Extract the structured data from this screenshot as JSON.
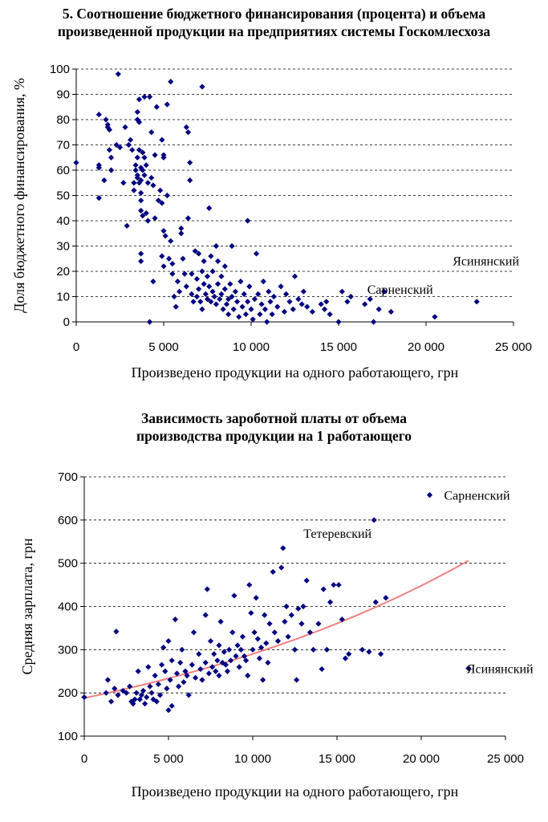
{
  "chart_data": [
    {
      "type": "scatter",
      "title_lines": [
        "5. Соотношение  бюджетного финансирования (процента) и  объема",
        "произведенной продукции на предприятиях системы Госкомлесхоза"
      ],
      "xlabel": "Произведено продукции на одного работающего, грн",
      "ylabel": "Доля бюджетного финансирования, %",
      "xlim": [
        0,
        25000
      ],
      "ylim": [
        0,
        100
      ],
      "x_ticks": [
        0,
        5000,
        10000,
        15000,
        20000,
        25000
      ],
      "x_tick_labels": [
        "0",
        "5 000",
        "10 000",
        "15 000",
        "20 000",
        "25 000"
      ],
      "y_ticks": [
        0,
        10,
        20,
        30,
        40,
        50,
        60,
        70,
        80,
        90,
        100
      ],
      "y_tick_labels": [
        "0",
        "10",
        "20",
        "30",
        "40",
        "50",
        "60",
        "70",
        "80",
        "90",
        "100"
      ],
      "grid": "horizontal dashed",
      "marker_color": "#000080",
      "annotations": [
        {
          "text": "Ясинянский",
          "x": 22900,
          "y": 17
        },
        {
          "text": "Сарненский",
          "x": 20400,
          "y": 8
        }
      ],
      "points": [
        [
          0,
          63
        ],
        [
          1300,
          82
        ],
        [
          1300,
          62
        ],
        [
          1300,
          61
        ],
        [
          1300,
          49
        ],
        [
          1600,
          56
        ],
        [
          1700,
          80
        ],
        [
          1800,
          78
        ],
        [
          1800,
          77
        ],
        [
          1900,
          76
        ],
        [
          1900,
          68
        ],
        [
          2000,
          65
        ],
        [
          2000,
          60
        ],
        [
          2300,
          70
        ],
        [
          2400,
          98
        ],
        [
          2500,
          69
        ],
        [
          2700,
          55
        ],
        [
          2800,
          77
        ],
        [
          2900,
          38
        ],
        [
          3000,
          70
        ],
        [
          3100,
          72
        ],
        [
          3200,
          68
        ],
        [
          3300,
          55
        ],
        [
          3300,
          52
        ],
        [
          3400,
          62
        ],
        [
          3400,
          60
        ],
        [
          3500,
          83
        ],
        [
          3500,
          80
        ],
        [
          3500,
          65
        ],
        [
          3500,
          58
        ],
        [
          3500,
          57
        ],
        [
          3600,
          88
        ],
        [
          3600,
          79
        ],
        [
          3600,
          68
        ],
        [
          3600,
          55
        ],
        [
          3700,
          61
        ],
        [
          3700,
          56
        ],
        [
          3700,
          51
        ],
        [
          3700,
          48
        ],
        [
          3700,
          44
        ],
        [
          3700,
          27
        ],
        [
          3700,
          24
        ],
        [
          3800,
          67
        ],
        [
          3800,
          60
        ],
        [
          3800,
          42
        ],
        [
          3900,
          89
        ],
        [
          3900,
          65
        ],
        [
          3900,
          58
        ],
        [
          4000,
          62
        ],
        [
          4000,
          43
        ],
        [
          4100,
          55
        ],
        [
          4100,
          40
        ],
        [
          4200,
          89
        ],
        [
          4200,
          0
        ],
        [
          4300,
          75
        ],
        [
          4300,
          57
        ],
        [
          4400,
          54
        ],
        [
          4400,
          16
        ],
        [
          4500,
          66
        ],
        [
          4500,
          41
        ],
        [
          4600,
          85
        ],
        [
          4700,
          48
        ],
        [
          4800,
          52
        ],
        [
          4900,
          72
        ],
        [
          4900,
          47
        ],
        [
          4900,
          26
        ],
        [
          5000,
          66
        ],
        [
          5000,
          65
        ],
        [
          5000,
          36
        ],
        [
          5000,
          22
        ],
        [
          5100,
          34
        ],
        [
          5200,
          86
        ],
        [
          5200,
          50
        ],
        [
          5300,
          25
        ],
        [
          5400,
          95
        ],
        [
          5400,
          32
        ],
        [
          5500,
          23
        ],
        [
          5500,
          19
        ],
        [
          5600,
          10
        ],
        [
          5700,
          6
        ],
        [
          5800,
          16
        ],
        [
          5900,
          12
        ],
        [
          6000,
          37
        ],
        [
          6000,
          35
        ],
        [
          6100,
          25
        ],
        [
          6200,
          19
        ],
        [
          6300,
          77
        ],
        [
          6300,
          14
        ],
        [
          6400,
          75
        ],
        [
          6400,
          41
        ],
        [
          6500,
          56
        ],
        [
          6500,
          63
        ],
        [
          6600,
          19
        ],
        [
          6600,
          11
        ],
        [
          6700,
          8
        ],
        [
          6800,
          28
        ],
        [
          6900,
          17
        ],
        [
          6900,
          10
        ],
        [
          7000,
          27
        ],
        [
          7000,
          13
        ],
        [
          7100,
          8
        ],
        [
          7200,
          93
        ],
        [
          7200,
          20
        ],
        [
          7200,
          5
        ],
        [
          7300,
          24
        ],
        [
          7300,
          15
        ],
        [
          7400,
          11
        ],
        [
          7500,
          18
        ],
        [
          7500,
          9
        ],
        [
          7600,
          45
        ],
        [
          7600,
          14
        ],
        [
          7700,
          26
        ],
        [
          7700,
          8
        ],
        [
          7800,
          20
        ],
        [
          7800,
          12
        ],
        [
          7900,
          10
        ],
        [
          8000,
          30
        ],
        [
          8000,
          7
        ],
        [
          8100,
          24
        ],
        [
          8100,
          15
        ],
        [
          8200,
          9
        ],
        [
          8300,
          18
        ],
        [
          8300,
          11
        ],
        [
          8400,
          5
        ],
        [
          8500,
          13
        ],
        [
          8500,
          22
        ],
        [
          8600,
          7
        ],
        [
          8700,
          9
        ],
        [
          8700,
          3
        ],
        [
          8800,
          15
        ],
        [
          8900,
          30
        ],
        [
          8900,
          10
        ],
        [
          9000,
          5
        ],
        [
          9100,
          12
        ],
        [
          9200,
          8
        ],
        [
          9300,
          2
        ],
        [
          9400,
          16
        ],
        [
          9500,
          6
        ],
        [
          9600,
          11
        ],
        [
          9700,
          3
        ],
        [
          9800,
          40
        ],
        [
          9800,
          8
        ],
        [
          9900,
          14
        ],
        [
          10000,
          5
        ],
        [
          10100,
          1
        ],
        [
          10200,
          9
        ],
        [
          10300,
          27
        ],
        [
          10400,
          11
        ],
        [
          10500,
          3
        ],
        [
          10600,
          7
        ],
        [
          10700,
          16
        ],
        [
          10800,
          5
        ],
        [
          10900,
          0
        ],
        [
          11000,
          12
        ],
        [
          11100,
          8
        ],
        [
          11200,
          3
        ],
        [
          11300,
          10
        ],
        [
          11500,
          6
        ],
        [
          11700,
          14
        ],
        [
          11900,
          4
        ],
        [
          12000,
          11
        ],
        [
          12200,
          8
        ],
        [
          12400,
          5
        ],
        [
          12500,
          18
        ],
        [
          12700,
          9
        ],
        [
          12900,
          7
        ],
        [
          13000,
          12
        ],
        [
          13200,
          6
        ],
        [
          13500,
          4
        ],
        [
          14000,
          7
        ],
        [
          14200,
          5
        ],
        [
          14300,
          8
        ],
        [
          14500,
          3
        ],
        [
          15000,
          0
        ],
        [
          15200,
          12
        ],
        [
          15500,
          8
        ],
        [
          15700,
          10
        ],
        [
          16500,
          7
        ],
        [
          16800,
          9
        ],
        [
          17000,
          0
        ],
        [
          17300,
          5
        ],
        [
          17600,
          12
        ],
        [
          18000,
          4
        ],
        [
          20500,
          2
        ],
        [
          22900,
          8
        ]
      ]
    },
    {
      "type": "scatter",
      "title_lines": [
        "Зависимость зароботной платы от объема",
        "производства продукции  на 1 работающего"
      ],
      "xlabel": "Произведено продукции на одного работающего, грн",
      "ylabel": "Средняя зарплата, грн",
      "xlim": [
        0,
        25000
      ],
      "ylim": [
        100,
        700
      ],
      "x_ticks": [
        0,
        5000,
        10000,
        15000,
        20000,
        25000
      ],
      "x_tick_labels": [
        "0",
        "5 000",
        "10 000",
        "15 000",
        "20 000",
        "25 000"
      ],
      "y_ticks": [
        100,
        200,
        300,
        400,
        500,
        600,
        700
      ],
      "y_tick_labels": [
        "100",
        "200",
        "300",
        "400",
        "500",
        "600",
        "700"
      ],
      "grid": "horizontal dashed",
      "marker_color": "#000080",
      "trend_color": "#f08080",
      "trend": {
        "type": "exponential",
        "x": [
          0,
          22800
        ],
        "y": [
          188,
          506
        ]
      },
      "annotations": [
        {
          "text": "Сарненский",
          "x": 20500,
          "y": 658
        },
        {
          "text": "Тетеревский",
          "x": 17200,
          "y": 600
        },
        {
          "text": "Ясинянский",
          "x": 22800,
          "y": 257
        }
      ],
      "points": [
        [
          0,
          190
        ],
        [
          1300,
          200
        ],
        [
          1400,
          230
        ],
        [
          1600,
          180
        ],
        [
          1800,
          210
        ],
        [
          1900,
          342
        ],
        [
          2000,
          195
        ],
        [
          2300,
          205
        ],
        [
          2500,
          200
        ],
        [
          2700,
          215
        ],
        [
          2800,
          180
        ],
        [
          2900,
          175
        ],
        [
          3000,
          185
        ],
        [
          3100,
          200
        ],
        [
          3200,
          250
        ],
        [
          3300,
          185
        ],
        [
          3400,
          195
        ],
        [
          3500,
          205
        ],
        [
          3600,
          175
        ],
        [
          3700,
          190
        ],
        [
          3800,
          260
        ],
        [
          3900,
          215
        ],
        [
          4000,
          200
        ],
        [
          4100,
          185
        ],
        [
          4200,
          240
        ],
        [
          4300,
          180
        ],
        [
          4400,
          220
        ],
        [
          4500,
          195
        ],
        [
          4600,
          265
        ],
        [
          4700,
          305
        ],
        [
          4800,
          250
        ],
        [
          4900,
          210
        ],
        [
          5000,
          320
        ],
        [
          5000,
          160
        ],
        [
          5100,
          230
        ],
        [
          5200,
          275
        ],
        [
          5200,
          170
        ],
        [
          5400,
          370
        ],
        [
          5500,
          245
        ],
        [
          5600,
          215
        ],
        [
          5700,
          270
        ],
        [
          5800,
          300
        ],
        [
          5900,
          225
        ],
        [
          6000,
          250
        ],
        [
          6100,
          240
        ],
        [
          6200,
          195
        ],
        [
          6400,
          265
        ],
        [
          6500,
          340
        ],
        [
          6600,
          235
        ],
        [
          6800,
          290
        ],
        [
          6900,
          255
        ],
        [
          7000,
          230
        ],
        [
          7200,
          380
        ],
        [
          7200,
          270
        ],
        [
          7300,
          440
        ],
        [
          7400,
          245
        ],
        [
          7500,
          320
        ],
        [
          7600,
          260
        ],
        [
          7700,
          290
        ],
        [
          7800,
          250
        ],
        [
          7900,
          275
        ],
        [
          8000,
          310
        ],
        [
          8000,
          240
        ],
        [
          8100,
          365
        ],
        [
          8200,
          270
        ],
        [
          8300,
          295
        ],
        [
          8400,
          265
        ],
        [
          8500,
          250
        ],
        [
          8600,
          300
        ],
        [
          8700,
          275
        ],
        [
          8800,
          340
        ],
        [
          8900,
          425
        ],
        [
          9000,
          285
        ],
        [
          9100,
          310
        ],
        [
          9200,
          260
        ],
        [
          9300,
          300
        ],
        [
          9400,
          330
        ],
        [
          9500,
          285
        ],
        [
          9600,
          275
        ],
        [
          9700,
          240
        ],
        [
          9800,
          450
        ],
        [
          9900,
          385
        ],
        [
          10000,
          300
        ],
        [
          10100,
          340
        ],
        [
          10200,
          420
        ],
        [
          10300,
          325
        ],
        [
          10400,
          280
        ],
        [
          10500,
          305
        ],
        [
          10600,
          230
        ],
        [
          10700,
          380
        ],
        [
          10800,
          315
        ],
        [
          10900,
          270
        ],
        [
          11000,
          360
        ],
        [
          11200,
          480
        ],
        [
          11300,
          340
        ],
        [
          11500,
          320
        ],
        [
          11700,
          490
        ],
        [
          11800,
          535
        ],
        [
          11900,
          365
        ],
        [
          12000,
          400
        ],
        [
          12100,
          330
        ],
        [
          12300,
          380
        ],
        [
          12500,
          300
        ],
        [
          12600,
          230
        ],
        [
          12700,
          395
        ],
        [
          12900,
          360
        ],
        [
          13000,
          400
        ],
        [
          13200,
          460
        ],
        [
          13400,
          340
        ],
        [
          13600,
          300
        ],
        [
          13900,
          360
        ],
        [
          14100,
          255
        ],
        [
          14200,
          440
        ],
        [
          14400,
          300
        ],
        [
          14600,
          410
        ],
        [
          14800,
          450
        ],
        [
          15100,
          450
        ],
        [
          15300,
          370
        ],
        [
          15500,
          280
        ],
        [
          15700,
          290
        ],
        [
          16500,
          300
        ],
        [
          16900,
          295
        ],
        [
          17200,
          600
        ],
        [
          17300,
          410
        ],
        [
          17600,
          290
        ],
        [
          17900,
          420
        ],
        [
          20500,
          658
        ],
        [
          22800,
          257
        ]
      ]
    }
  ]
}
